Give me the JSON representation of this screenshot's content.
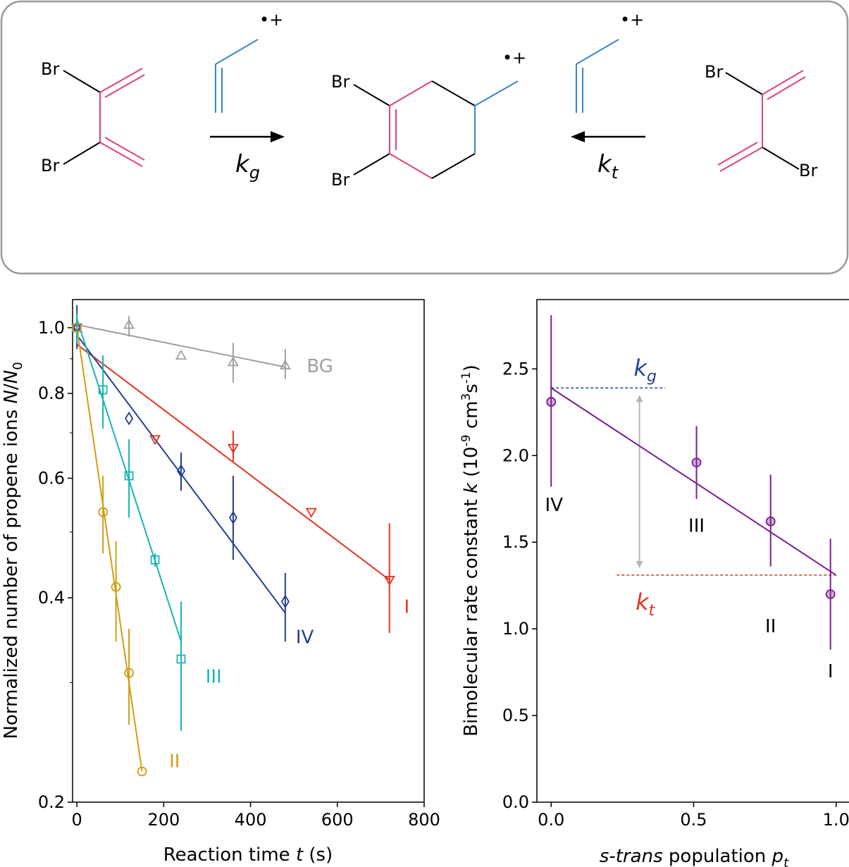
{
  "colors": {
    "pink": "#e0427d",
    "blue": "#3a86c8",
    "red": "#e2341f",
    "navy": "#233f95",
    "cyan": "#17b5b8",
    "gold": "#d19e12",
    "gray": "#a0a0a0",
    "purple": "#7b1f8f"
  },
  "scheme": {
    "br": "Br",
    "radical_cation": "•+",
    "kg_main": "k",
    "kg_sub": "g",
    "kt_main": "k",
    "kt_sub": "t"
  },
  "chart_data": [
    {
      "type": "scatter",
      "scale": "log-y",
      "xlabel_main": "Reaction time ",
      "xlabel_var": "t",
      "xlabel_unit": " (s)",
      "ylabel_main": "Normalized number of propene ions ",
      "ylabel_var": "N",
      "ylabel_slash": "/",
      "ylabel_var2": "N",
      "ylabel_sub": "0",
      "xlim": [
        -10,
        800
      ],
      "ylim": [
        0.2,
        1.1
      ],
      "xticks": [
        0,
        200,
        400,
        600,
        800
      ],
      "yticks": [
        0.2,
        0.4,
        0.6,
        0.8,
        1.0
      ],
      "ytick_labels": [
        "0.2",
        "0.4",
        "0.6",
        "0.8",
        "1.0"
      ],
      "yminor": [
        0.3,
        0.5,
        0.7,
        0.9
      ],
      "series": [
        {
          "name": "BG",
          "color": "gray",
          "marker": "triangle-up",
          "x": [
            0,
            120,
            240,
            360,
            480
          ],
          "y": [
            1.0,
            1.01,
            0.91,
            0.89,
            0.88
          ],
          "err": [
            [
              0.98,
              1.02
            ],
            [
              0.97,
              1.04
            ],
            [
              0.91,
              0.91
            ],
            [
              0.83,
              0.95
            ],
            [
              0.84,
              0.93
            ]
          ],
          "fit": [
            [
              0,
              1.01
            ],
            [
              480,
              0.875
            ]
          ],
          "label_x": 560,
          "label_y": 0.86
        },
        {
          "name": "I",
          "color": "red",
          "marker": "triangle-down",
          "x": [
            0,
            180,
            360,
            540,
            720
          ],
          "y": [
            1.0,
            0.685,
            0.665,
            0.535,
            0.425
          ],
          "err": [
            [
              1.0,
              1.0
            ],
            [
              0.685,
              0.685
            ],
            [
              0.635,
              0.705
            ],
            [
              0.535,
              0.535
            ],
            [
              0.355,
              0.515
            ]
          ],
          "fit": [
            [
              0,
              0.945
            ],
            [
              720,
              0.425
            ]
          ],
          "label_x": 760,
          "label_y": 0.38
        },
        {
          "name": "IV",
          "color": "navy",
          "marker": "diamond",
          "x": [
            0,
            120,
            240,
            360,
            480
          ],
          "y": [
            1.0,
            0.735,
            0.615,
            0.525,
            0.395
          ],
          "err": [
            [
              0.93,
              1.08
            ],
            [
              0.735,
              0.735
            ],
            [
              0.575,
              0.655
            ],
            [
              0.455,
              0.605
            ],
            [
              0.345,
              0.435
            ]
          ],
          "fit": [
            [
              0,
              0.975
            ],
            [
              480,
              0.38
            ]
          ],
          "label_x": 525,
          "label_y": 0.343
        },
        {
          "name": "III",
          "color": "cyan",
          "marker": "square",
          "x": [
            0,
            60,
            120,
            180,
            240
          ],
          "y": [
            1.0,
            0.81,
            0.605,
            0.455,
            0.325
          ],
          "err": [
            [
              0.95,
              1.05
            ],
            [
              0.71,
              0.91
            ],
            [
              0.525,
              0.685
            ],
            [
              0.445,
              0.465
            ],
            [
              0.255,
              0.395
            ]
          ],
          "fit": [
            [
              0,
              1.03
            ],
            [
              240,
              0.345
            ]
          ],
          "label_x": 315,
          "label_y": 0.3
        },
        {
          "name": "II",
          "color": "gold",
          "marker": "circle",
          "x": [
            0,
            60,
            90,
            120,
            150
          ],
          "y": [
            1.0,
            0.535,
            0.415,
            0.31,
            0.222
          ],
          "err": [
            [
              1.0,
              1.0
            ],
            [
              0.465,
              0.605
            ],
            [
              0.345,
              0.485
            ],
            [
              0.26,
              0.36
            ],
            [
              0.222,
              0.222
            ]
          ],
          "fit": [
            [
              0,
              1.0
            ],
            [
              150,
              0.222
            ]
          ],
          "label_x": 225,
          "label_y": 0.225
        }
      ]
    },
    {
      "type": "scatter",
      "xlabel_var": "s-trans",
      "xlabel_main": " population ",
      "xlabel_var2": "p",
      "xlabel_sub": "t",
      "ylabel_main": "Bimolecular rate constant ",
      "ylabel_var": "k",
      "ylabel_unit_pre": " (10",
      "ylabel_exp1": "-9",
      "ylabel_unit_mid": " cm",
      "ylabel_exp2": "3",
      "ylabel_unit_s": "s",
      "ylabel_exp3": "-1",
      "ylabel_unit_end": ")",
      "xlim": [
        -0.05,
        1.05
      ],
      "ylim": [
        0.0,
        2.9
      ],
      "xticks": [
        0.0,
        0.5,
        1.0
      ],
      "xtick_labels": [
        "0.0",
        "0.5",
        "1.0"
      ],
      "yticks": [
        0.0,
        0.5,
        1.0,
        1.5,
        2.0,
        2.5
      ],
      "ytick_labels": [
        "0.0",
        "0.5",
        "1.0",
        "1.5",
        "2.0",
        "2.5"
      ],
      "points": [
        {
          "name": "IV",
          "x": 0.0,
          "y": 2.31,
          "err": [
            1.82,
            2.81
          ]
        },
        {
          "name": "III",
          "x": 0.51,
          "y": 1.96,
          "err": [
            1.75,
            2.17
          ]
        },
        {
          "name": "II",
          "x": 0.77,
          "y": 1.62,
          "err": [
            1.36,
            1.89
          ]
        },
        {
          "name": "I",
          "x": 0.98,
          "y": 1.2,
          "err": [
            0.88,
            1.52
          ]
        }
      ],
      "point_label_positions": [
        {
          "x": 0.01,
          "y": 1.68
        },
        {
          "x": 0.51,
          "y": 1.56
        },
        {
          "x": 0.77,
          "y": 0.98
        },
        {
          "x": 0.98,
          "y": 0.72
        }
      ],
      "fit": [
        [
          0.0,
          2.39
        ],
        [
          1.0,
          1.31
        ]
      ],
      "kg": {
        "y": 2.39,
        "x_range": [
          0.0,
          0.4
        ],
        "main": "k",
        "sub": "g",
        "label_x": 0.33,
        "label_y": 2.46
      },
      "kt": {
        "y": 1.31,
        "x_range": [
          0.23,
          1.0
        ],
        "main": "k",
        "sub": "t",
        "label_x": 0.33,
        "label_y": 1.11
      },
      "arrow_x": 0.31
    }
  ]
}
